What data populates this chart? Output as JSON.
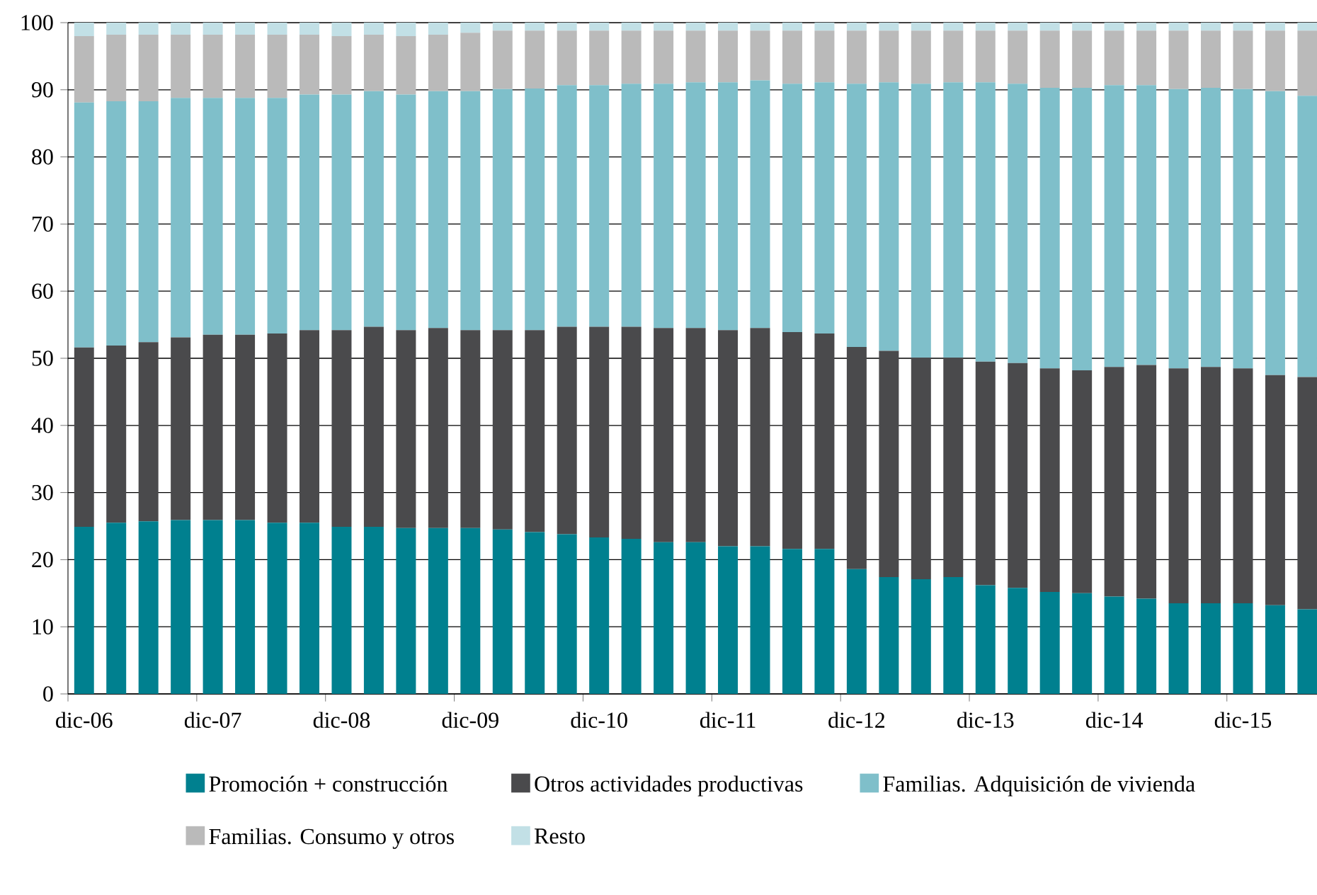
{
  "chart_data": {
    "type": "bar",
    "stacked": true,
    "categories": [
      "dic-06",
      null,
      null,
      null,
      "dic-07",
      null,
      null,
      null,
      "dic-08",
      null,
      null,
      null,
      "dic-09",
      null,
      null,
      null,
      "dic-10",
      null,
      null,
      null,
      "dic-11",
      null,
      null,
      null,
      "dic-12",
      null,
      null,
      null,
      "dic-13",
      null,
      null,
      null,
      "dic-14",
      null,
      null,
      null,
      "dic-15",
      null,
      null
    ],
    "series": [
      {
        "name": "Promoción + construcción",
        "color": "#00808f",
        "values": [
          24.9,
          25.5,
          25.7,
          25.9,
          25.9,
          25.9,
          25.5,
          25.5,
          24.9,
          24.9,
          24.7,
          24.7,
          24.7,
          24.5,
          24.1,
          23.8,
          23.3,
          23.1,
          22.6,
          22.6,
          22.0,
          22.0,
          21.6,
          21.6,
          18.6,
          17.4,
          17.1,
          17.4,
          16.2,
          15.8,
          15.2,
          15.0,
          14.5,
          14.2,
          13.5,
          13.5,
          13.5,
          13.2,
          12.6
        ]
      },
      {
        "name": "Otros actividades productivas",
        "color": "#4a4a4c",
        "values": [
          26.7,
          26.4,
          26.7,
          27.2,
          27.6,
          27.6,
          28.2,
          28.7,
          29.3,
          29.8,
          29.5,
          29.8,
          29.5,
          29.7,
          30.1,
          30.9,
          31.4,
          31.6,
          31.9,
          31.9,
          32.2,
          32.5,
          32.3,
          32.1,
          33.1,
          33.7,
          33.0,
          32.7,
          33.3,
          33.5,
          33.3,
          33.2,
          34.2,
          34.8,
          35.0,
          35.2,
          35.0,
          34.3,
          34.6
        ]
      },
      {
        "name": "Familias. Adquisición de vivienda",
        "color": "#7fbfca",
        "values": [
          36.5,
          36.4,
          35.9,
          35.7,
          35.3,
          35.3,
          35.1,
          35.1,
          35.1,
          35.1,
          35.1,
          35.3,
          35.6,
          35.9,
          36.0,
          36.0,
          36.0,
          36.2,
          36.4,
          36.6,
          36.9,
          36.9,
          37.0,
          37.4,
          39.2,
          40.0,
          40.8,
          41.0,
          41.6,
          41.6,
          41.8,
          42.1,
          42.0,
          41.7,
          41.6,
          41.6,
          41.6,
          42.3,
          41.9
        ]
      },
      {
        "name": "Familias. Consumo y otros",
        "color": "#bababa",
        "values": [
          9.9,
          9.9,
          9.9,
          9.4,
          9.4,
          9.4,
          9.4,
          8.9,
          8.7,
          8.4,
          8.7,
          8.4,
          8.7,
          8.7,
          8.6,
          8.1,
          8.1,
          7.9,
          7.9,
          7.7,
          7.7,
          7.4,
          7.9,
          7.7,
          7.9,
          7.7,
          7.9,
          7.7,
          7.7,
          7.9,
          8.5,
          8.5,
          8.1,
          8.1,
          8.7,
          8.5,
          8.7,
          9.0,
          9.7
        ]
      },
      {
        "name": "Resto",
        "color": "#c2e0e6",
        "values": [
          2.0,
          1.8,
          1.8,
          1.8,
          1.8,
          1.8,
          1.8,
          1.8,
          2.0,
          1.8,
          2.0,
          1.8,
          1.5,
          1.2,
          1.2,
          1.2,
          1.2,
          1.2,
          1.2,
          1.2,
          1.2,
          1.2,
          1.2,
          1.2,
          1.2,
          1.2,
          1.2,
          1.2,
          1.2,
          1.2,
          1.2,
          1.2,
          1.2,
          1.2,
          1.2,
          1.2,
          1.2,
          1.2,
          1.2
        ]
      }
    ],
    "ylim": [
      0,
      100
    ],
    "yticks": [
      0,
      10,
      20,
      30,
      40,
      50,
      60,
      70,
      80,
      90,
      100
    ],
    "grid": "y",
    "legend": "bottom"
  }
}
